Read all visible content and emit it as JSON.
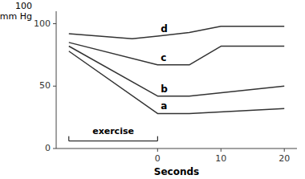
{
  "chart_data": {
    "type": "line",
    "xlabel": "Seconds",
    "ylabel": [
      "100",
      "mm Hg"
    ],
    "series": [
      {
        "name": "a",
        "color": "#333333",
        "x": [
          -14,
          0,
          5,
          20
        ],
        "values": [
          78,
          28,
          28,
          32
        ],
        "label_x": 0.5,
        "label_y": 30
      },
      {
        "name": "b",
        "color": "#333333",
        "x": [
          -14,
          0,
          5,
          20
        ],
        "values": [
          82,
          42,
          42,
          50
        ],
        "label_x": 0.5,
        "label_y": 44
      },
      {
        "name": "c",
        "color": "#333333",
        "x": [
          -14,
          0,
          5,
          10,
          20
        ],
        "values": [
          85,
          67,
          67,
          82,
          82
        ],
        "label_x": 0.5,
        "label_y": 69
      },
      {
        "name": "d",
        "color": "#333333",
        "x": [
          -14,
          -4,
          0,
          5,
          10,
          20
        ],
        "values": [
          92,
          88,
          90,
          93,
          98,
          98
        ],
        "label_x": 0.5,
        "label_y": 92
      }
    ],
    "bracket": {
      "text": "exercise",
      "x_start": -14,
      "x_end": 0,
      "y": 6
    },
    "xlim": [
      -16,
      22
    ],
    "ylim": [
      0,
      110
    ],
    "xticks": [
      0,
      10,
      20
    ],
    "yticks": [
      0,
      50,
      100
    ],
    "grid": false
  }
}
